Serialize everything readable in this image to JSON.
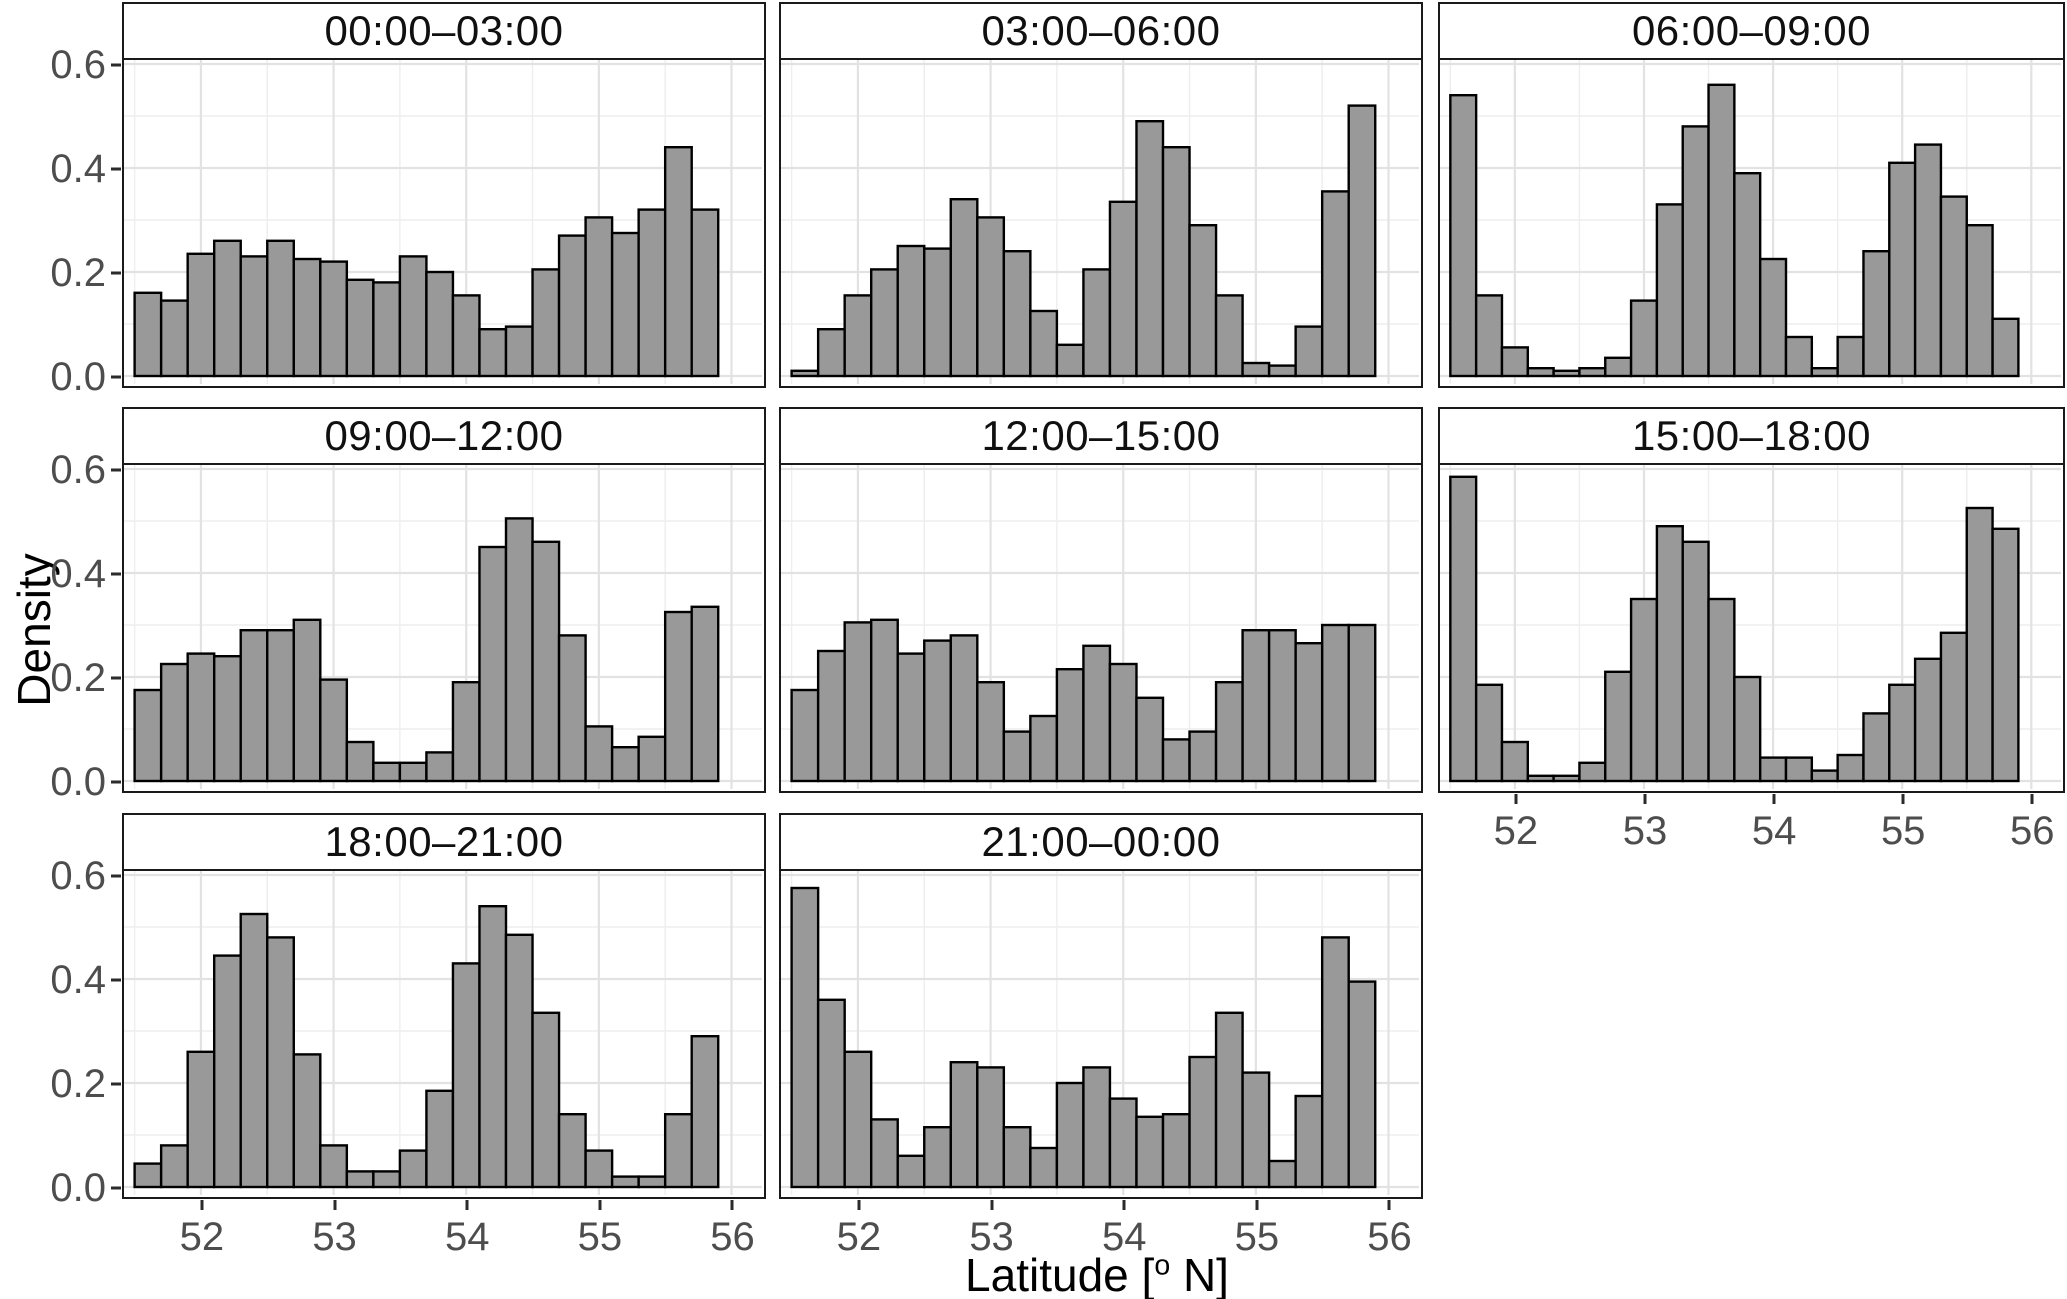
{
  "figure": {
    "y_axis_title": "Density",
    "x_axis_title": "Latitude [° N]",
    "x_axis_title_prefix": "Latitude [",
    "x_axis_title_sup": "o",
    "x_axis_title_suffix": " N]",
    "colors": {
      "bar_fill": "#999999",
      "bar_stroke": "#000000",
      "grid_major": "#e2e2e2",
      "grid_minor": "#eeeeee",
      "panel_border": "#1a1a1a",
      "strip_background": "#ffffff",
      "tick_label": "#4d4d4d",
      "background": "#ffffff"
    }
  },
  "chart_data": {
    "type": "bar",
    "subtype": "faceted_histogram",
    "title": "",
    "xlabel": "Latitude [° N]",
    "ylabel": "Density",
    "xlim": [
      51.42,
      56.23
    ],
    "ylim": [
      0,
      0.62
    ],
    "x_tick_values": [
      52,
      53,
      54,
      55,
      56
    ],
    "x_tick_labels": [
      "52",
      "53",
      "54",
      "55",
      "56"
    ],
    "y_tick_values": [
      0,
      0.2,
      0.4,
      0.6
    ],
    "y_tick_labels": [
      "0.0",
      "0.2",
      "0.4",
      "0.6"
    ],
    "x_minor_ticks": [
      51.5,
      52.5,
      53.5,
      54.5,
      55.5
    ],
    "y_minor_ticks": [
      0.1,
      0.3,
      0.5
    ],
    "grid": true,
    "legend": "none",
    "bin_start": 51.5,
    "bin_width": 0.2,
    "bin_count": 22,
    "bin_centers": [
      51.6,
      51.8,
      52.0,
      52.2,
      52.4,
      52.6,
      52.8,
      53.0,
      53.2,
      53.4,
      53.6,
      53.8,
      54.0,
      54.2,
      54.4,
      54.6,
      54.8,
      55.0,
      55.2,
      55.4,
      55.6,
      55.8
    ],
    "facets": [
      {
        "label": "00:00–03:00",
        "values": [
          0.16,
          0.145,
          0.235,
          0.26,
          0.23,
          0.26,
          0.225,
          0.22,
          0.185,
          0.18,
          0.23,
          0.2,
          0.155,
          0.09,
          0.095,
          0.205,
          0.27,
          0.305,
          0.275,
          0.32,
          0.44,
          0.32
        ]
      },
      {
        "label": "03:00–06:00",
        "values": [
          0.01,
          0.09,
          0.155,
          0.205,
          0.25,
          0.245,
          0.34,
          0.305,
          0.24,
          0.125,
          0.06,
          0.205,
          0.335,
          0.49,
          0.44,
          0.29,
          0.155,
          0.025,
          0.02,
          0.095,
          0.355,
          0.52
        ]
      },
      {
        "label": "06:00–09:00",
        "values": [
          0.54,
          0.155,
          0.055,
          0.015,
          0.01,
          0.015,
          0.035,
          0.145,
          0.33,
          0.48,
          0.56,
          0.39,
          0.225,
          0.075,
          0.015,
          0.075,
          0.24,
          0.41,
          0.445,
          0.345,
          0.29,
          0.11
        ]
      },
      {
        "label": "09:00–12:00",
        "values": [
          0.175,
          0.225,
          0.245,
          0.24,
          0.29,
          0.29,
          0.31,
          0.195,
          0.075,
          0.035,
          0.035,
          0.055,
          0.19,
          0.45,
          0.505,
          0.46,
          0.28,
          0.105,
          0.065,
          0.085,
          0.325,
          0.335
        ]
      },
      {
        "label": "12:00–15:00",
        "values": [
          0.175,
          0.25,
          0.305,
          0.31,
          0.245,
          0.27,
          0.28,
          0.19,
          0.095,
          0.125,
          0.215,
          0.26,
          0.225,
          0.16,
          0.08,
          0.095,
          0.19,
          0.29,
          0.29,
          0.265,
          0.3,
          0.3
        ]
      },
      {
        "label": "15:00–18:00",
        "values": [
          0.585,
          0.185,
          0.075,
          0.01,
          0.01,
          0.035,
          0.21,
          0.35,
          0.49,
          0.46,
          0.35,
          0.2,
          0.045,
          0.045,
          0.02,
          0.05,
          0.13,
          0.185,
          0.235,
          0.285,
          0.525,
          0.485
        ]
      },
      {
        "label": "18:00–21:00",
        "values": [
          0.045,
          0.08,
          0.26,
          0.445,
          0.525,
          0.48,
          0.255,
          0.08,
          0.03,
          0.03,
          0.07,
          0.185,
          0.43,
          0.54,
          0.485,
          0.335,
          0.14,
          0.07,
          0.02,
          0.02,
          0.14,
          0.29
        ]
      },
      {
        "label": "21:00–00:00",
        "values": [
          0.575,
          0.36,
          0.26,
          0.13,
          0.06,
          0.115,
          0.24,
          0.23,
          0.115,
          0.075,
          0.2,
          0.23,
          0.17,
          0.135,
          0.14,
          0.25,
          0.335,
          0.22,
          0.05,
          0.175,
          0.48,
          0.395
        ]
      }
    ]
  }
}
